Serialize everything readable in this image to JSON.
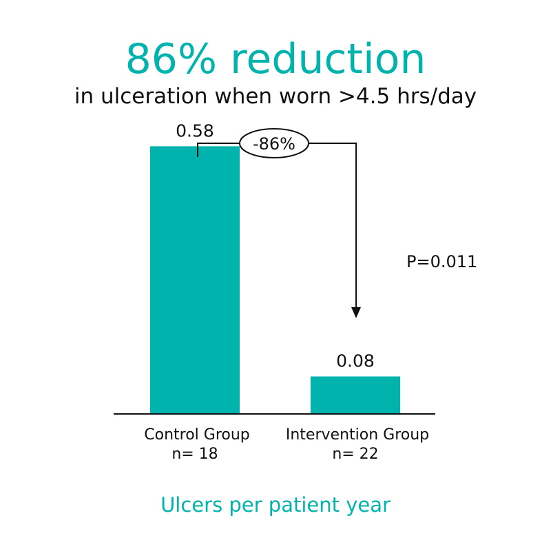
{
  "header": {
    "title": "86% reduction",
    "subtitle": "in ulceration when worn >4.5 hrs/day"
  },
  "footer": {
    "caption": "Ulcers per patient year"
  },
  "colors": {
    "accent": "#00b3ad",
    "text": "#111111"
  },
  "chart_data": {
    "type": "bar",
    "categories": [
      "Control Group",
      "Intervention Group"
    ],
    "category_sublabels": [
      "n= 18",
      "n= 22"
    ],
    "values": [
      0.58,
      0.08
    ],
    "data_labels": [
      "0.58",
      "0.08"
    ],
    "ylim": [
      0,
      0.6
    ],
    "grid": false,
    "annotations": {
      "reduction_label": "-86%",
      "p_value": "P=0.011"
    }
  }
}
